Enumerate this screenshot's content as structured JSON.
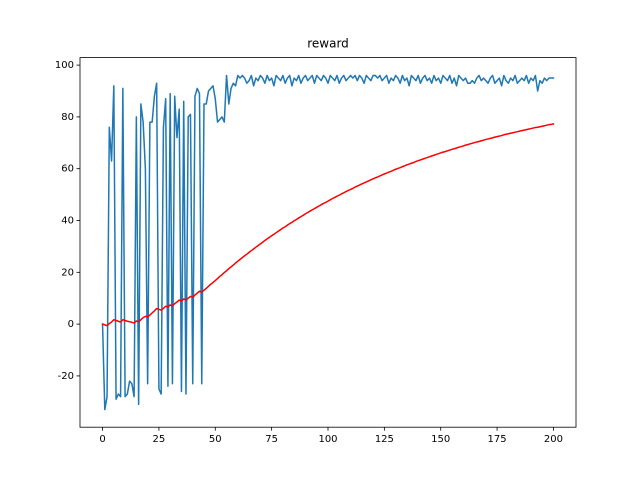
{
  "chart_data": {
    "type": "line",
    "title": "reward",
    "x": [
      0,
      1,
      2,
      3,
      4,
      5,
      6,
      7,
      8,
      9,
      10,
      11,
      12,
      13,
      14,
      15,
      16,
      17,
      18,
      19,
      20,
      21,
      22,
      23,
      24,
      25,
      26,
      27,
      28,
      29,
      30,
      31,
      32,
      33,
      34,
      35,
      36,
      37,
      38,
      39,
      40,
      41,
      42,
      43,
      44,
      45,
      46,
      47,
      48,
      49,
      50,
      51,
      52,
      53,
      54,
      55,
      56,
      57,
      58,
      59,
      60,
      61,
      62,
      63,
      64,
      65,
      66,
      67,
      68,
      69,
      70,
      71,
      72,
      73,
      74,
      75,
      76,
      77,
      78,
      79,
      80,
      81,
      82,
      83,
      84,
      85,
      86,
      87,
      88,
      89,
      90,
      91,
      92,
      93,
      94,
      95,
      96,
      97,
      98,
      99,
      100,
      101,
      102,
      103,
      104,
      105,
      106,
      107,
      108,
      109,
      110,
      111,
      112,
      113,
      114,
      115,
      116,
      117,
      118,
      119,
      120,
      121,
      122,
      123,
      124,
      125,
      126,
      127,
      128,
      129,
      130,
      131,
      132,
      133,
      134,
      135,
      136,
      137,
      138,
      139,
      140,
      141,
      142,
      143,
      144,
      145,
      146,
      147,
      148,
      149,
      150,
      151,
      152,
      153,
      154,
      155,
      156,
      157,
      158,
      159,
      160,
      161,
      162,
      163,
      164,
      165,
      166,
      167,
      168,
      169,
      170,
      171,
      172,
      173,
      174,
      175,
      176,
      177,
      178,
      179,
      180,
      181,
      182,
      183,
      184,
      185,
      186,
      187,
      188,
      189,
      190,
      191,
      192,
      193,
      194,
      195,
      196,
      197,
      198,
      199,
      200
    ],
    "series": [
      {
        "color": "#1f77b4",
        "values": [
          0,
          -33,
          -28,
          76,
          63,
          92,
          -29,
          -27,
          -28,
          91,
          -28,
          -27,
          -22,
          -23,
          -28,
          80,
          -31,
          85,
          78,
          60,
          -23,
          78,
          78,
          88,
          93,
          -25,
          -27,
          76,
          87,
          -24,
          89,
          -23,
          88,
          72,
          83,
          -26,
          86,
          -27,
          80,
          81,
          -23,
          88,
          91,
          89,
          -23,
          85,
          85,
          90,
          91,
          92,
          87,
          78,
          79,
          80,
          78,
          96,
          85,
          91,
          93,
          92,
          96,
          95,
          96,
          95,
          93,
          94,
          96,
          92,
          95,
          94,
          96,
          95,
          93,
          96,
          94,
          95,
          92,
          96,
          95,
          94,
          96,
          93,
          95,
          96,
          92,
          95,
          94,
          96,
          93,
          95,
          96,
          94,
          95,
          96,
          93,
          96,
          95,
          94,
          96,
          95,
          93,
          96,
          95,
          94,
          96,
          93,
          95,
          96,
          94,
          95,
          96,
          95,
          96,
          94,
          96,
          95,
          93,
          96,
          95,
          94,
          96,
          96,
          95,
          96,
          94,
          95,
          96,
          93,
          95,
          94,
          96,
          95,
          93,
          96,
          94,
          95,
          92,
          96,
          95,
          94,
          96,
          93,
          95,
          96,
          94,
          95,
          93,
          96,
          94,
          95,
          93,
          96,
          95,
          94,
          96,
          93,
          95,
          92,
          96,
          95,
          94,
          95,
          93,
          93,
          94,
          93,
          95,
          96,
          94,
          95,
          94,
          93,
          95,
          96,
          93,
          94,
          95,
          92,
          96,
          94,
          93,
          95,
          94,
          96,
          93,
          94,
          95,
          94,
          96,
          93,
          95,
          94,
          96,
          90,
          94,
          93,
          95,
          94,
          95,
          95,
          95
        ]
      },
      {
        "color": "#ff0000",
        "values": [
          0,
          -0.3,
          -0.6,
          0.2,
          0.8,
          1.7,
          1.4,
          1.1,
          0.8,
          1.7,
          1.4,
          1.1,
          0.9,
          0.7,
          0.4,
          1.2,
          0.9,
          1.7,
          2.5,
          3.0,
          2.8,
          3.5,
          4.3,
          5.1,
          6.0,
          5.7,
          5.4,
          6.1,
          6.9,
          6.6,
          7.4,
          7.1,
          7.9,
          8.5,
          9.3,
          8.9,
          9.7,
          9.3,
          10.0,
          10.7,
          10.4,
          11.2,
          12.0,
          12.7,
          12.4,
          13.1,
          13.8,
          14.6,
          15.4,
          16.1,
          16.8,
          17.6,
          18.4,
          19.1,
          19.9,
          20.6,
          21.4,
          22.1,
          22.8,
          23.6,
          24.3,
          25.0,
          25.7,
          26.4,
          27.0,
          27.7,
          28.4,
          29.0,
          29.7,
          30.3,
          31.0,
          31.6,
          32.3,
          32.9,
          33.5,
          34.1,
          34.7,
          35.3,
          35.9,
          36.5,
          37.1,
          37.6,
          38.2,
          38.8,
          39.3,
          39.9,
          40.4,
          41.0,
          41.5,
          42.0,
          42.6,
          43.1,
          43.6,
          44.1,
          44.6,
          45.1,
          45.6,
          46.1,
          46.6,
          47.0,
          47.5,
          48.0,
          48.5,
          48.9,
          49.4,
          49.8,
          50.3,
          50.7,
          51.2,
          51.6,
          52.0,
          52.4,
          52.9,
          53.3,
          53.7,
          54.1,
          54.5,
          54.9,
          55.3,
          55.7,
          56.1,
          56.5,
          56.8,
          57.2,
          57.6,
          58.0,
          58.3,
          58.7,
          59.0,
          59.4,
          59.8,
          60.1,
          60.4,
          60.8,
          61.1,
          61.5,
          61.8,
          62.1,
          62.4,
          62.8,
          63.1,
          63.4,
          63.7,
          64.0,
          64.3,
          64.6,
          64.9,
          65.2,
          65.5,
          65.8,
          66.1,
          66.4,
          66.6,
          66.9,
          67.2,
          67.5,
          67.7,
          68.0,
          68.3,
          68.5,
          68.8,
          69.1,
          69.3,
          69.6,
          69.8,
          70.1,
          70.3,
          70.5,
          70.8,
          71.0,
          71.3,
          71.5,
          71.7,
          71.9,
          72.2,
          72.4,
          72.6,
          72.8,
          73.1,
          73.3,
          73.5,
          73.7,
          73.9,
          74.1,
          74.3,
          74.5,
          74.7,
          74.9,
          75.1,
          75.3,
          75.5,
          75.7,
          75.9,
          76.0,
          76.2,
          76.4,
          76.6,
          76.8,
          77.0,
          77.1,
          77.3
        ]
      }
    ],
    "xlim": [
      -10,
      210
    ],
    "xticks": [
      0,
      25,
      50,
      75,
      100,
      125,
      150,
      175,
      200
    ],
    "ylim": [
      -39.8,
      102.9
    ],
    "yticks": [
      -20,
      0,
      20,
      40,
      60,
      80,
      100
    ]
  }
}
